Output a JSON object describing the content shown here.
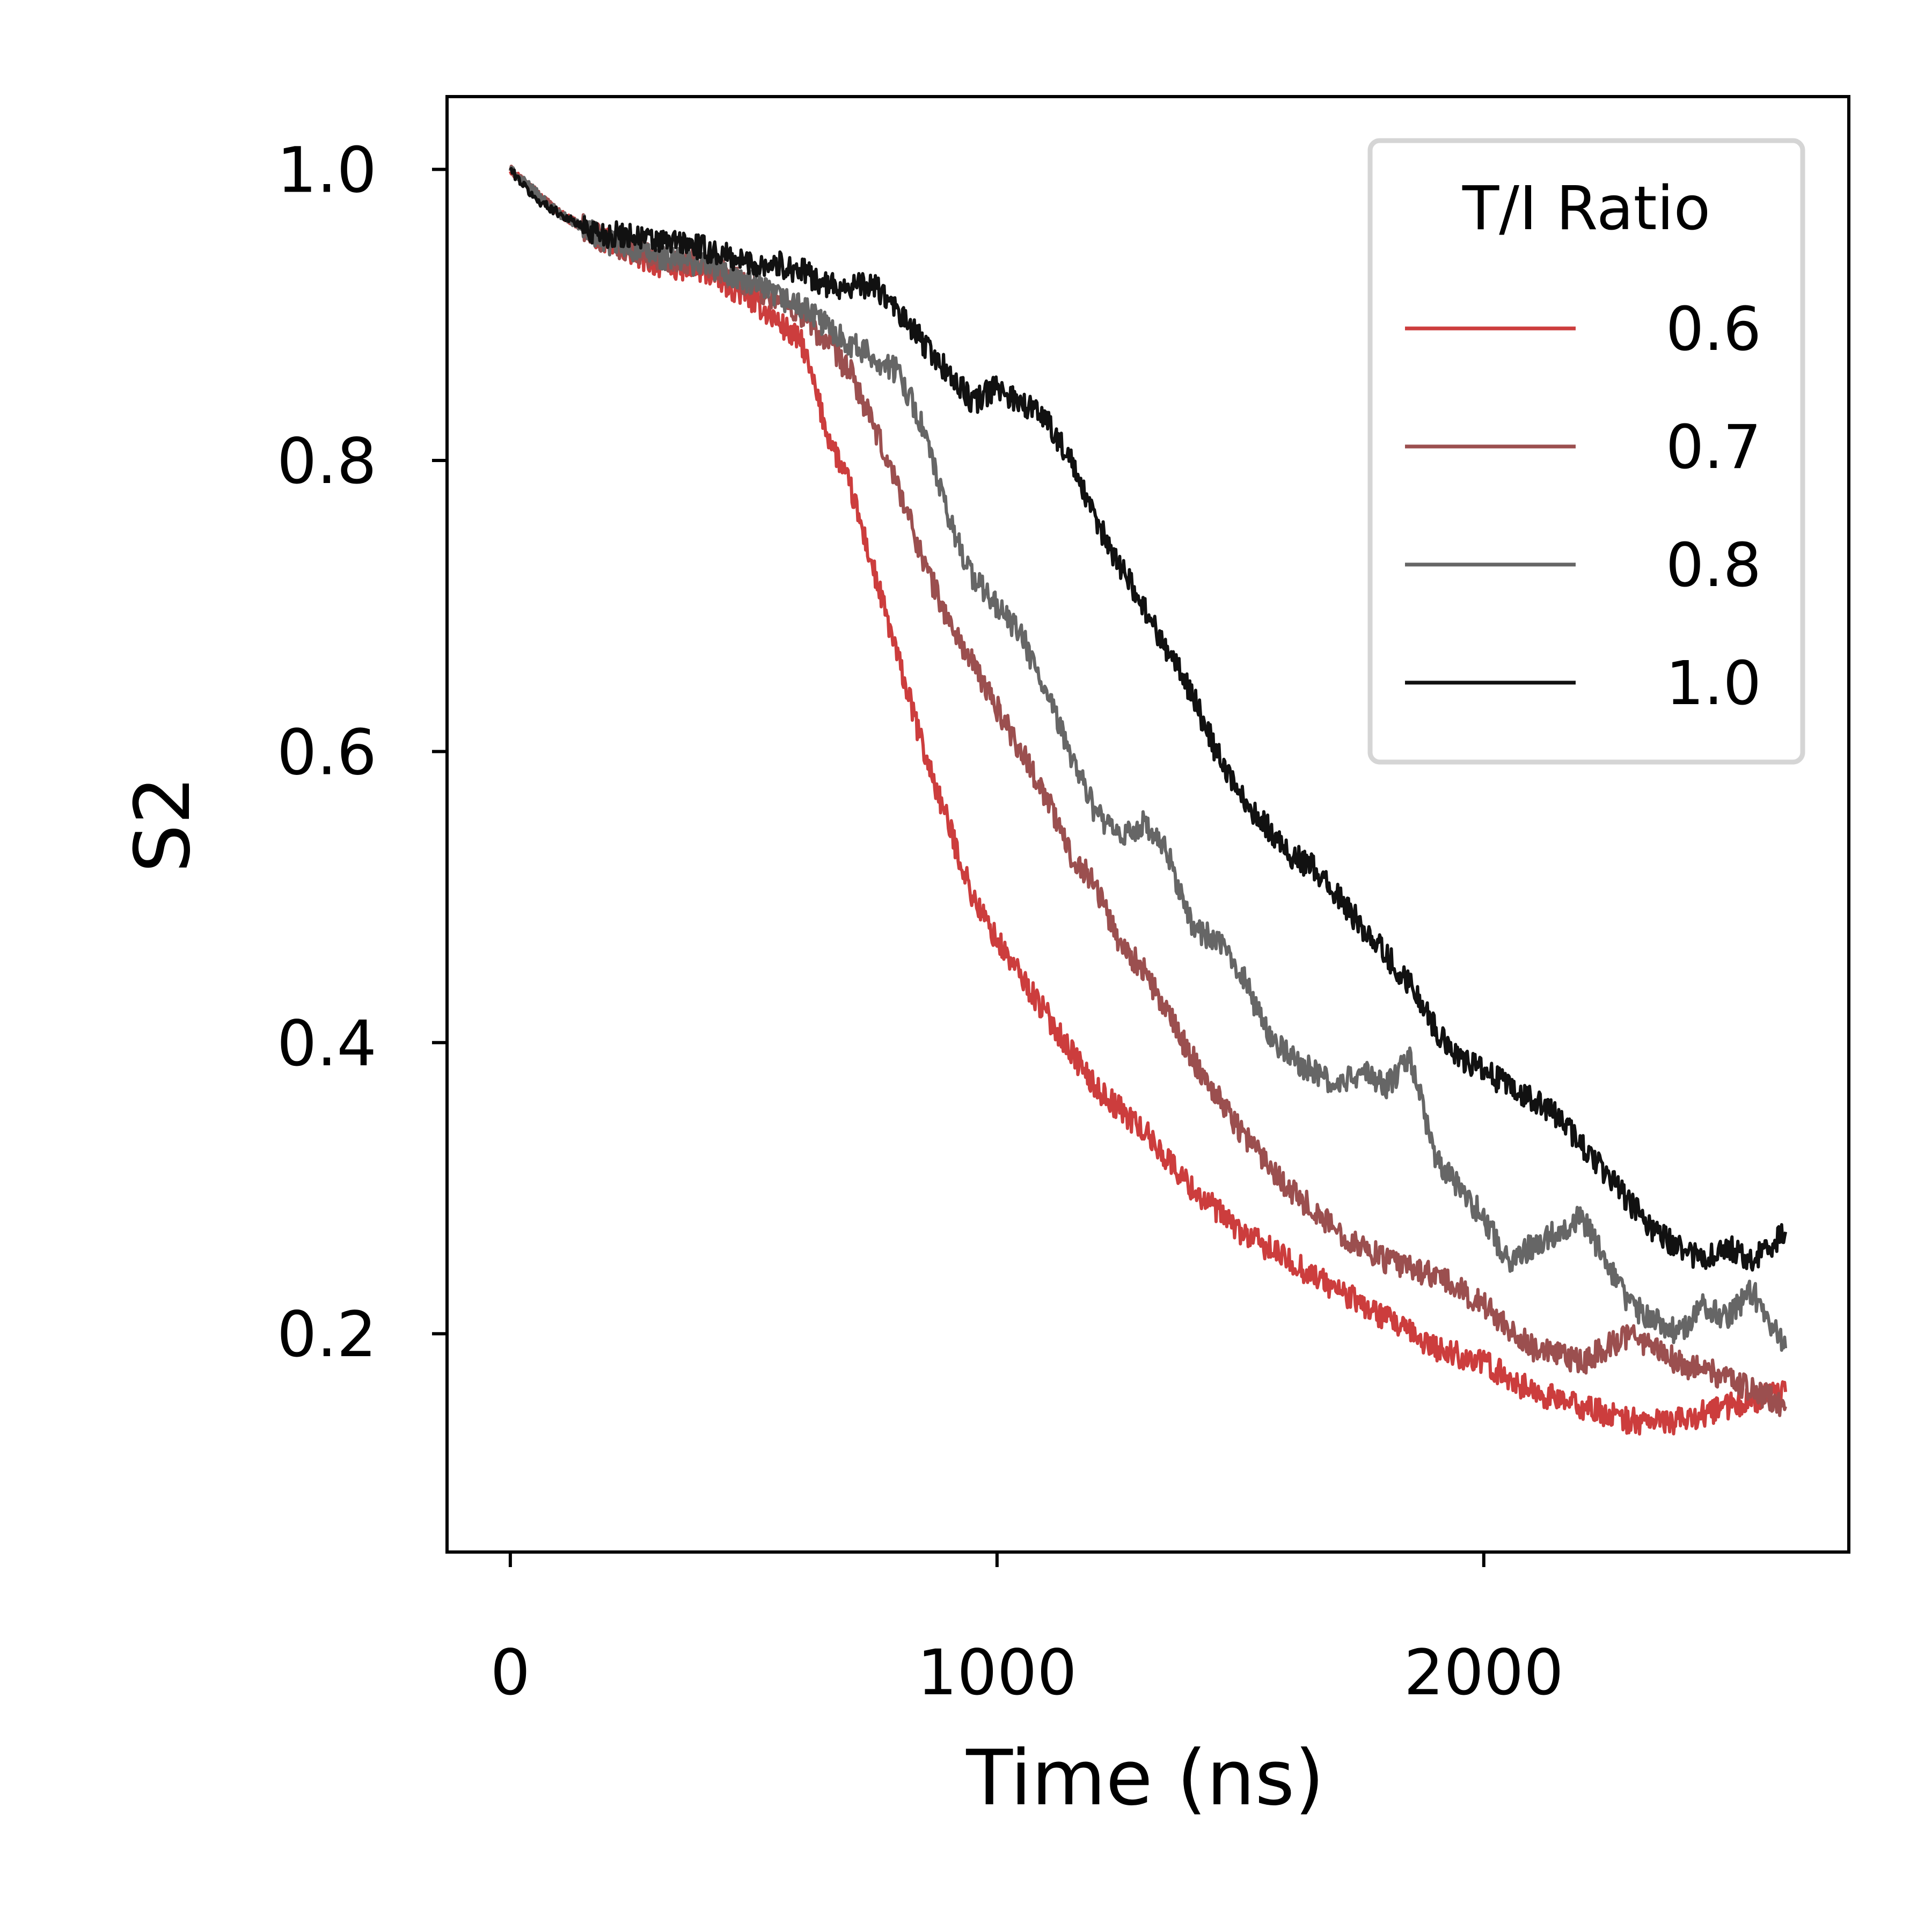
{
  "chart_data": {
    "type": "line",
    "xlabel": "Time (ns)",
    "ylabel": "S2",
    "xlim": [
      -130,
      2750
    ],
    "ylim": [
      0.05,
      1.05
    ],
    "x_ticks": [
      0,
      1000,
      2000
    ],
    "x_tick_labels": [
      "0",
      "1000",
      "2000"
    ],
    "y_ticks": [
      0.2,
      0.4,
      0.6,
      0.8,
      1.0
    ],
    "y_tick_labels": [
      "0.2",
      "0.4",
      "0.6",
      "0.8",
      "1.0"
    ],
    "legend": {
      "title": "T/I Ratio",
      "placement": "top-right"
    },
    "series": [
      {
        "name": "0.6",
        "color": "#cc3d3d",
        "x": [
          0,
          100,
          200,
          300,
          400,
          500,
          600,
          650,
          700,
          750,
          800,
          850,
          900,
          950,
          1000,
          1100,
          1200,
          1300,
          1400,
          1500,
          1600,
          1700,
          1800,
          1900,
          2000,
          2100,
          2200,
          2300,
          2400,
          2500,
          2620
        ],
        "y": [
          1.0,
          0.97,
          0.95,
          0.935,
          0.93,
          0.91,
          0.88,
          0.82,
          0.78,
          0.72,
          0.66,
          0.6,
          0.55,
          0.5,
          0.47,
          0.42,
          0.37,
          0.34,
          0.3,
          0.27,
          0.25,
          0.23,
          0.21,
          0.19,
          0.18,
          0.16,
          0.15,
          0.14,
          0.14,
          0.15,
          0.16
        ]
      },
      {
        "name": "0.7",
        "color": "#9b4f4f",
        "x": [
          0,
          100,
          200,
          300,
          400,
          500,
          600,
          700,
          750,
          800,
          850,
          900,
          950,
          1000,
          1050,
          1100,
          1150,
          1200,
          1250,
          1300,
          1400,
          1500,
          1600,
          1700,
          1800,
          1900,
          2000,
          2100,
          2200,
          2300,
          2400,
          2500,
          2620
        ],
        "y": [
          1.0,
          0.97,
          0.95,
          0.94,
          0.935,
          0.92,
          0.9,
          0.86,
          0.82,
          0.78,
          0.73,
          0.69,
          0.66,
          0.63,
          0.6,
          0.57,
          0.53,
          0.51,
          0.47,
          0.45,
          0.39,
          0.34,
          0.3,
          0.27,
          0.25,
          0.24,
          0.22,
          0.19,
          0.18,
          0.2,
          0.18,
          0.17,
          0.15
        ]
      },
      {
        "name": "0.8",
        "color": "#666666",
        "x": [
          0,
          100,
          200,
          300,
          400,
          500,
          600,
          700,
          800,
          850,
          900,
          950,
          1000,
          1050,
          1100,
          1150,
          1200,
          1250,
          1300,
          1350,
          1400,
          1450,
          1500,
          1550,
          1600,
          1650,
          1700,
          1750,
          1800,
          1850,
          1900,
          1950,
          2000,
          2050,
          2100,
          2150,
          2200,
          2250,
          2300,
          2350,
          2400,
          2450,
          2500,
          2550,
          2620
        ],
        "y": [
          1.0,
          0.97,
          0.95,
          0.94,
          0.935,
          0.92,
          0.905,
          0.88,
          0.86,
          0.82,
          0.76,
          0.72,
          0.7,
          0.68,
          0.64,
          0.6,
          0.56,
          0.54,
          0.55,
          0.53,
          0.48,
          0.47,
          0.45,
          0.41,
          0.39,
          0.38,
          0.37,
          0.38,
          0.37,
          0.39,
          0.32,
          0.3,
          0.28,
          0.25,
          0.26,
          0.27,
          0.28,
          0.25,
          0.22,
          0.21,
          0.2,
          0.22,
          0.21,
          0.23,
          0.19
        ]
      },
      {
        "name": "1.0",
        "color": "#111111",
        "x": [
          0,
          50,
          100,
          150,
          200,
          250,
          300,
          350,
          400,
          450,
          500,
          550,
          600,
          650,
          700,
          750,
          800,
          850,
          900,
          950,
          1000,
          1050,
          1100,
          1150,
          1200,
          1250,
          1300,
          1350,
          1400,
          1450,
          1500,
          1550,
          1600,
          1650,
          1700,
          1750,
          1800,
          1850,
          1900,
          1950,
          2000,
          2050,
          2100,
          2150,
          2200,
          2250,
          2300,
          2350,
          2400,
          2450,
          2500,
          2550,
          2620
        ],
        "y": [
          1.0,
          0.98,
          0.97,
          0.96,
          0.955,
          0.955,
          0.95,
          0.95,
          0.945,
          0.94,
          0.935,
          0.935,
          0.93,
          0.92,
          0.92,
          0.92,
          0.9,
          0.88,
          0.86,
          0.84,
          0.85,
          0.84,
          0.83,
          0.8,
          0.76,
          0.73,
          0.7,
          0.67,
          0.64,
          0.6,
          0.57,
          0.55,
          0.53,
          0.52,
          0.5,
          0.48,
          0.46,
          0.44,
          0.41,
          0.39,
          0.38,
          0.37,
          0.36,
          0.35,
          0.33,
          0.31,
          0.29,
          0.27,
          0.26,
          0.25,
          0.26,
          0.25,
          0.27
        ]
      }
    ]
  }
}
